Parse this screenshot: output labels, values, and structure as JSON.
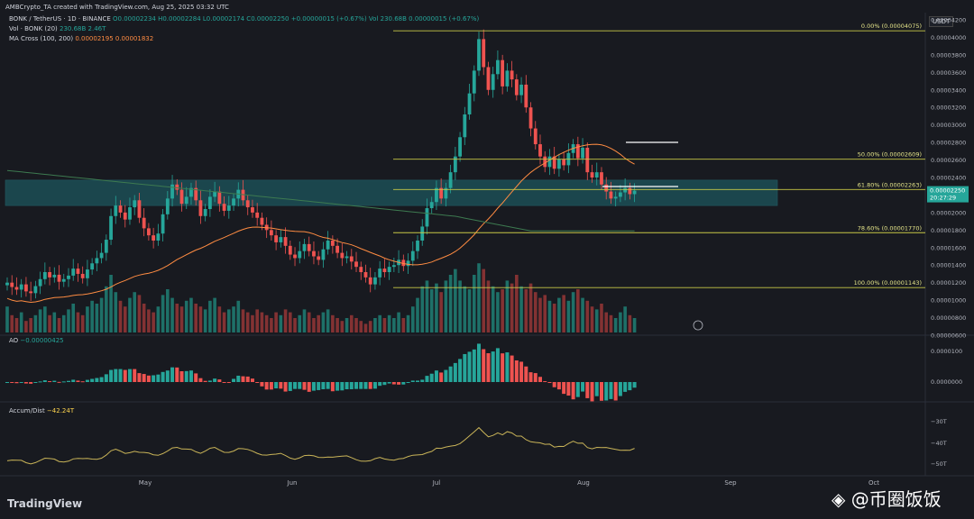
{
  "header": {
    "created": "AMBCrypto_TA created with TradingView.com, Aug 25, 2025 03:32 UTC",
    "symbol": "BONK / TetherUS · 1D · BINANCE",
    "ohlc": "O0.00002234 H0.00002284 L0.00002174 C0.00002250 +0.00000015 (+0.67%)",
    "vol_inline": "Vol 230.68B 0.00000015 (+0.67%)",
    "vol_label": "Vol · BONK (20)",
    "vol_values": "230.68B  2.46T",
    "ma_label": "MA Cross (100, 200)",
    "ma_values": "0.00002195  0.00001832",
    "currency": "USDT"
  },
  "ao": {
    "label": "AO",
    "value": "−0.00000425",
    "axis": [
      "0.0000100",
      "0.0000000"
    ]
  },
  "ad": {
    "label": "Accum/Dist",
    "value": "−42.24T",
    "axis": [
      "−30T",
      "−40T",
      "−50T"
    ]
  },
  "footer": {
    "logo": "TradingView",
    "watermark": "◈ @币圈饭饭"
  },
  "colors": {
    "up": "#26a69a",
    "down": "#ef5350",
    "fib": "#c8c846",
    "ma100": "#ff8c42",
    "ma200": "#26a69a",
    "zone": "#1e6b72",
    "ad": "#c9b458"
  },
  "chart_data": {
    "type": "candlestick",
    "title": "BONK / TetherUS · 1D · BINANCE",
    "ylabel": "USDT",
    "ylim": [
      6e-06,
      4.2e-05
    ],
    "y_ticks": [
      "0.00004200",
      "0.00004000",
      "0.00003800",
      "0.00003600",
      "0.00003400",
      "0.00003200",
      "0.00003000",
      "0.00002800",
      "0.00002600",
      "0.00002400",
      "0.00002200",
      "0.00002000",
      "0.00001800",
      "0.00001600",
      "0.00001400",
      "0.00001200",
      "0.00001000",
      "0.00000800",
      "0.00000600"
    ],
    "x_labels": [
      "May",
      "Jun",
      "Jul",
      "Aug",
      "Sep",
      "Oct"
    ],
    "last_price": "0.00002250",
    "countdown": "20:27:29",
    "fib_levels": [
      {
        "label": "0.00% (0.00004075)",
        "value": 4.075e-05
      },
      {
        "label": "50.00% (0.00002609)",
        "value": 2.609e-05
      },
      {
        "label": "61.80% (0.00002263)",
        "value": 2.263e-05
      },
      {
        "label": "78.60% (0.00001770)",
        "value": 1.77e-05
      },
      {
        "label": "100.00% (0.00001143)",
        "value": 1.143e-05
      }
    ],
    "support_zone": [
      2.08e-05,
      2.37e-05
    ],
    "closes": [
      12.0,
      11.5,
      11.2,
      11.8,
      11.0,
      10.8,
      11.6,
      12.4,
      13.2,
      12.6,
      12.9,
      12.1,
      12.4,
      12.8,
      13.6,
      13.0,
      12.5,
      13.5,
      14.2,
      14.8,
      15.4,
      16.9,
      19.6,
      20.8,
      20.0,
      19.2,
      20.6,
      21.4,
      19.4,
      18.2,
      17.4,
      16.8,
      17.6,
      19.8,
      21.6,
      23.2,
      22.6,
      21.0,
      21.8,
      22.8,
      21.4,
      19.6,
      20.4,
      21.8,
      22.4,
      21.0,
      20.2,
      20.8,
      21.6,
      22.6,
      21.4,
      20.6,
      20.0,
      19.4,
      18.6,
      18.0,
      17.4,
      16.6,
      17.2,
      16.2,
      15.2,
      14.8,
      15.6,
      16.4,
      15.6,
      15.0,
      14.6,
      15.8,
      16.8,
      16.2,
      15.4,
      14.8,
      15.0,
      14.4,
      13.8,
      13.2,
      12.6,
      11.8,
      12.6,
      13.6,
      13.2,
      13.8,
      14.0,
      14.6,
      13.9,
      14.5,
      15.6,
      16.8,
      18.4,
      20.5,
      21.2,
      22.8,
      21.6,
      22.8,
      24.6,
      26.4,
      28.6,
      31.2,
      33.6,
      36.2,
      39.8,
      36.6,
      34.0,
      35.8,
      37.4,
      34.4,
      36.2,
      35.2,
      33.4,
      34.6,
      32.0,
      29.6,
      27.8,
      26.4,
      25.2,
      26.4,
      25.0,
      26.1,
      25.4,
      26.8,
      27.8,
      26.2,
      27.4,
      24.6,
      24.0,
      24.6,
      23.2,
      22.4,
      21.6,
      21.8,
      22.3,
      22.8,
      22.1,
      22.5
    ],
    "volume": [
      9,
      6,
      5,
      7,
      4,
      5,
      6,
      8,
      9,
      6,
      7,
      5,
      6,
      8,
      10,
      7,
      6,
      9,
      11,
      10,
      12,
      16,
      20,
      14,
      11,
      9,
      12,
      14,
      13,
      10,
      8,
      7,
      9,
      13,
      15,
      12,
      10,
      9,
      11,
      12,
      10,
      9,
      8,
      11,
      12,
      9,
      7,
      8,
      9,
      11,
      8,
      7,
      6,
      8,
      7,
      6,
      5,
      7,
      6,
      8,
      7,
      5,
      6,
      8,
      7,
      5,
      6,
      7,
      8,
      6,
      5,
      4,
      5,
      6,
      5,
      4,
      3,
      4,
      5,
      6,
      5,
      6,
      5,
      7,
      5,
      6,
      9,
      12,
      16,
      18,
      15,
      17,
      14,
      18,
      20,
      22,
      18,
      16,
      15,
      20,
      24,
      22,
      18,
      16,
      14,
      15,
      18,
      17,
      20,
      16,
      15,
      17,
      14,
      12,
      13,
      11,
      10,
      12,
      13,
      11,
      14,
      15,
      12,
      11,
      9,
      8,
      10,
      7,
      6,
      5,
      7,
      9,
      6,
      5
    ]
  }
}
